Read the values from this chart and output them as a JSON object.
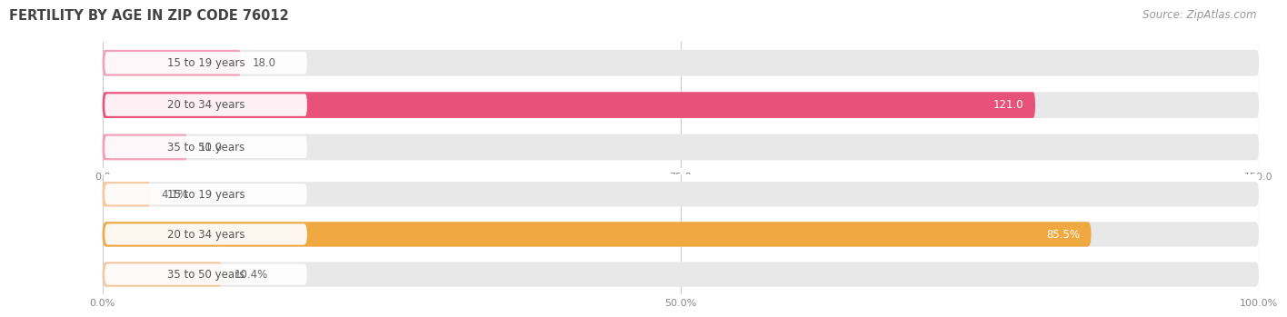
{
  "title": "FERTILITY BY AGE IN ZIP CODE 76012",
  "source": "Source: ZipAtlas.com",
  "top_chart": {
    "categories": [
      "15 to 19 years",
      "20 to 34 years",
      "35 to 50 years"
    ],
    "values": [
      18.0,
      121.0,
      11.0
    ],
    "xlim": [
      0,
      150
    ],
    "xticks": [
      0.0,
      75.0,
      150.0
    ],
    "bar_colors": [
      "#f4a0b8",
      "#e8527a",
      "#f4a0b8"
    ],
    "bar_bg_color": "#e8e8e8",
    "label_bg_color": "#ffffff"
  },
  "bottom_chart": {
    "categories": [
      "15 to 19 years",
      "20 to 34 years",
      "35 to 50 years"
    ],
    "values": [
      4.1,
      85.5,
      10.4
    ],
    "xlim": [
      0,
      100
    ],
    "xticks": [
      0.0,
      50.0,
      100.0
    ],
    "bar_colors": [
      "#f5c8a0",
      "#f0a840",
      "#f5c8a0"
    ],
    "bar_bg_color": "#e8e8e8",
    "label_bg_color": "#ffffff"
  },
  "label_color": "#555555",
  "label_fontsize": 8.5,
  "value_fontsize": 8.5,
  "title_fontsize": 10.5,
  "source_fontsize": 8.5,
  "background_color": "#ffffff",
  "bar_height": 0.62,
  "grid_color": "#cccccc",
  "tick_label_color": "#888888",
  "tick_fontsize": 8.0
}
